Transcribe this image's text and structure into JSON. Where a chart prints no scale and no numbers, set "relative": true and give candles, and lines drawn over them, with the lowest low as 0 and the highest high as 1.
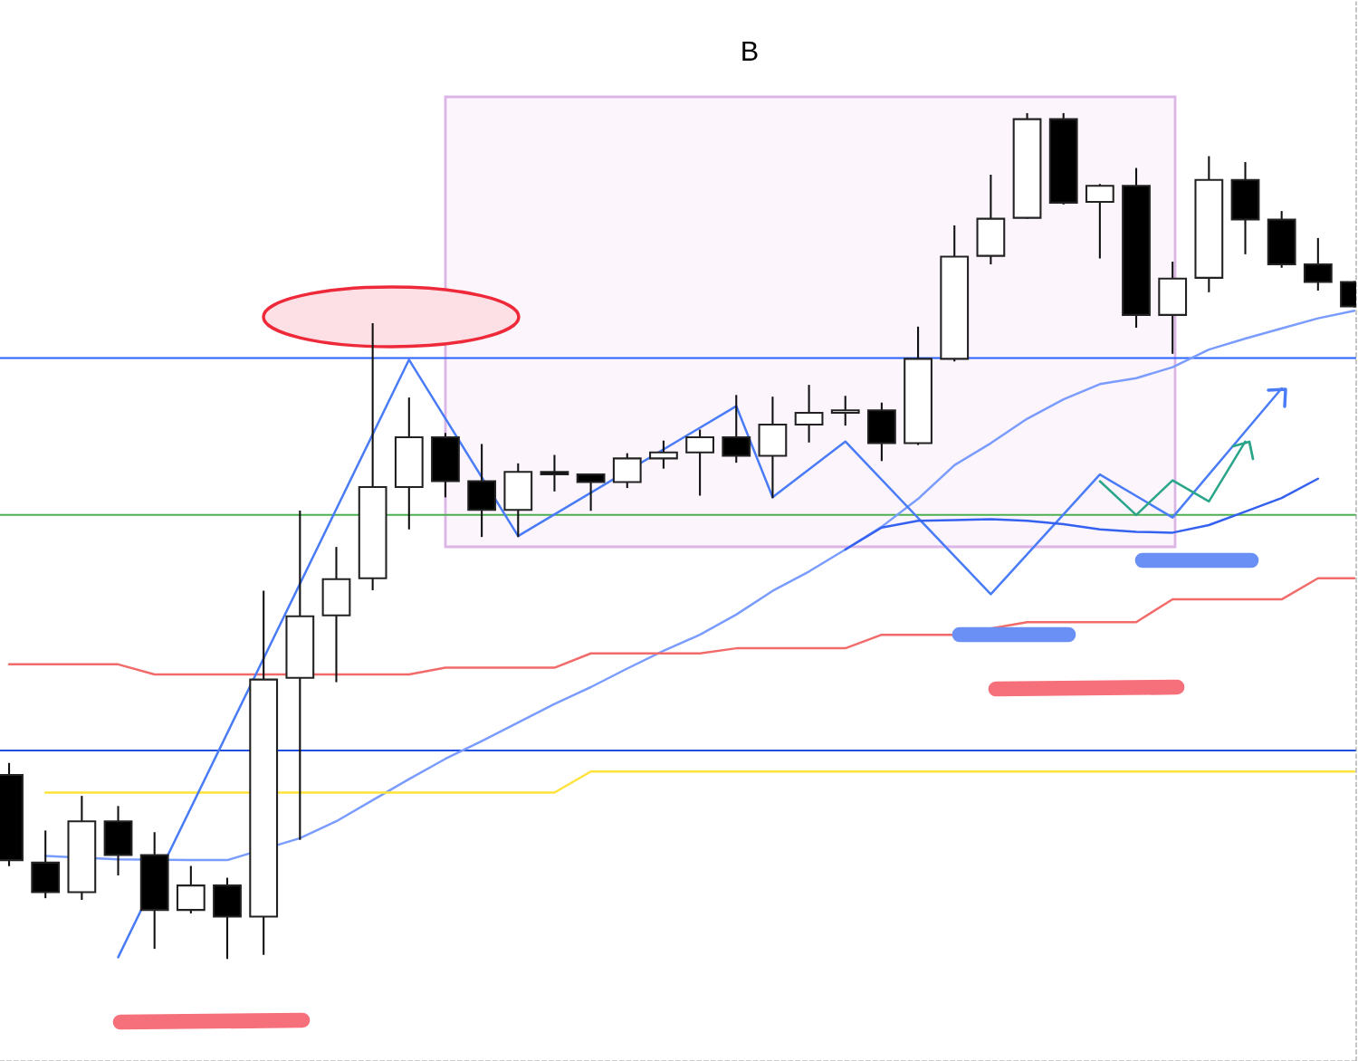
{
  "chart_data": {
    "type": "candlestick",
    "title": "B",
    "relative": true,
    "grid": false,
    "categories": [
      null,
      null,
      null,
      null,
      null,
      null,
      null,
      null,
      null,
      null,
      null,
      null,
      null,
      null,
      null,
      null,
      null,
      null,
      null,
      null,
      null,
      null,
      null,
      null,
      null,
      null,
      null,
      null,
      null,
      null,
      null,
      null,
      null,
      null,
      null,
      null,
      null,
      null
    ],
    "ohlc": [
      [
        0.217,
        0.23,
        0.11,
        0.116
      ],
      [
        0.113,
        0.15,
        0.072,
        0.078
      ],
      [
        0.078,
        0.191,
        0.07,
        0.162
      ],
      [
        0.162,
        0.179,
        0.099,
        0.122
      ],
      [
        0.122,
        0.148,
        0.012,
        0.057
      ],
      [
        0.057,
        0.108,
        0.054,
        0.086
      ],
      [
        0.086,
        0.094,
        0.0,
        0.049
      ],
      [
        0.049,
        0.434,
        0.005,
        0.33
      ],
      [
        0.332,
        0.529,
        0.141,
        0.405
      ],
      [
        0.406,
        0.486,
        0.328,
        0.449
      ],
      [
        0.45,
        0.751,
        0.437,
        0.558
      ],
      [
        0.558,
        0.663,
        0.509,
        0.617
      ],
      [
        0.617,
        0.621,
        0.547,
        0.565
      ],
      [
        0.565,
        0.608,
        0.5,
        0.531
      ],
      [
        0.531,
        0.585,
        0.5,
        0.576
      ],
      [
        0.576,
        0.595,
        0.554,
        0.573
      ],
      [
        0.573,
        0.573,
        0.531,
        0.564
      ],
      [
        0.564,
        0.597,
        0.558,
        0.592
      ],
      [
        0.592,
        0.612,
        0.581,
        0.599
      ],
      [
        0.599,
        0.625,
        0.549,
        0.617
      ],
      [
        0.617,
        0.666,
        0.588,
        0.595
      ],
      [
        0.595,
        0.664,
        0.546,
        0.632
      ],
      [
        0.632,
        0.678,
        0.612,
        0.646
      ],
      [
        0.646,
        0.665,
        0.632,
        0.649
      ],
      [
        0.649,
        0.657,
        0.59,
        0.61
      ],
      [
        0.61,
        0.747,
        0.609,
        0.71
      ],
      [
        0.71,
        0.867,
        0.708,
        0.831
      ],
      [
        0.832,
        0.927,
        0.823,
        0.876
      ],
      [
        0.877,
        1.0,
        0.877,
        0.994
      ],
      [
        0.994,
        1.0,
        0.894,
        0.895
      ],
      [
        0.896,
        0.916,
        0.83,
        0.915
      ],
      [
        0.915,
        0.935,
        0.748,
        0.762
      ],
      [
        0.762,
        0.824,
        0.717,
        0.805
      ],
      [
        0.806,
        0.949,
        0.79,
        0.922
      ],
      [
        0.922,
        0.942,
        0.835,
        0.875
      ],
      [
        0.875,
        0.884,
        0.819,
        0.822
      ],
      [
        0.822,
        0.852,
        0.792,
        0.801
      ],
      [
        0.801,
        0.801,
        0.772,
        0.772
      ]
    ],
    "series": [
      {
        "type": "line",
        "color": "#7b9cff",
        "values": [
          null,
          0.121,
          null,
          0.117,
          null,
          0.116,
          0.116,
          null,
          0.142,
          0.162,
          0.187,
          0.212,
          0.236,
          0.257,
          0.279,
          0.301,
          0.321,
          0.343,
          0.364,
          0.383,
          0.407,
          0.435,
          0.458,
          0.484,
          0.511,
          0.544,
          0.584,
          0.61,
          0.639,
          0.662,
          0.68,
          0.687,
          0.7,
          0.721,
          0.734,
          0.746,
          0.758,
          0.767
        ]
      },
      {
        "type": "line",
        "color": "#f26b6b",
        "values": [
          0.348,
          0.348,
          0.348,
          0.348,
          0.336,
          0.336,
          0.336,
          0.336,
          null,
          0.336,
          0.336,
          0.336,
          0.344,
          0.344,
          0.344,
          0.344,
          0.361,
          0.361,
          0.361,
          0.361,
          0.367,
          0.367,
          0.367,
          0.367,
          0.383,
          0.383,
          0.383,
          null,
          0.398,
          0.398,
          0.398,
          0.398,
          0.425,
          0.425,
          0.425,
          0.425,
          0.45,
          0.45
        ]
      },
      {
        "type": "line",
        "color": "#ffe33a",
        "values": [
          null,
          0.196,
          0.196,
          0.196,
          0.196,
          0.196,
          0.196,
          null,
          0.196,
          0.196,
          0.196,
          0.196,
          0.196,
          0.196,
          0.196,
          0.196,
          0.221,
          0.221,
          0.221,
          0.221,
          0.221,
          0.221,
          0.221,
          0.221,
          0.221,
          0.221,
          0.221,
          0.221,
          0.221,
          0.221,
          0.221,
          0.221,
          0.221,
          0.221,
          0.221,
          0.221,
          0.221,
          0.221
        ]
      },
      {
        "type": "line",
        "color": "#4a7cf7",
        "values": [
          null,
          null,
          null,
          0.001,
          null,
          null,
          null,
          null,
          null,
          null,
          null,
          0.709,
          null,
          null,
          0.5,
          null,
          null,
          null,
          null,
          null,
          0.654,
          0.546,
          null,
          0.612,
          null,
          null,
          null,
          0.431,
          null,
          null,
          0.573,
          null,
          0.522,
          null,
          null,
          0.675,
          null,
          null
        ]
      },
      {
        "type": "line",
        "color": "#2aa58a",
        "values": [
          null,
          null,
          null,
          null,
          null,
          null,
          null,
          null,
          null,
          null,
          null,
          null,
          null,
          null,
          null,
          null,
          null,
          null,
          null,
          null,
          null,
          null,
          null,
          null,
          null,
          null,
          null,
          null,
          null,
          null,
          0.565,
          0.525,
          0.566,
          0.541,
          0.612,
          null,
          null,
          null
        ]
      },
      {
        "type": "line",
        "color": "#3561f0",
        "values": [
          null,
          null,
          null,
          null,
          null,
          null,
          null,
          null,
          null,
          null,
          null,
          null,
          null,
          null,
          null,
          null,
          null,
          null,
          null,
          null,
          null,
          null,
          null,
          0.484,
          0.51,
          0.518,
          0.519,
          0.52,
          0.518,
          0.514,
          0.508,
          0.505,
          0.504,
          0.513,
          0.529,
          0.545,
          0.568,
          null
        ]
      }
    ],
    "ref_lines": [
      {
        "axis": "y",
        "value": 0.711,
        "color": "#2962ff"
      },
      {
        "axis": "y",
        "value": 0.525,
        "color": "#4caf50"
      },
      {
        "axis": "y",
        "value": 0.246,
        "color": "#1e4fe0"
      }
    ]
  }
}
